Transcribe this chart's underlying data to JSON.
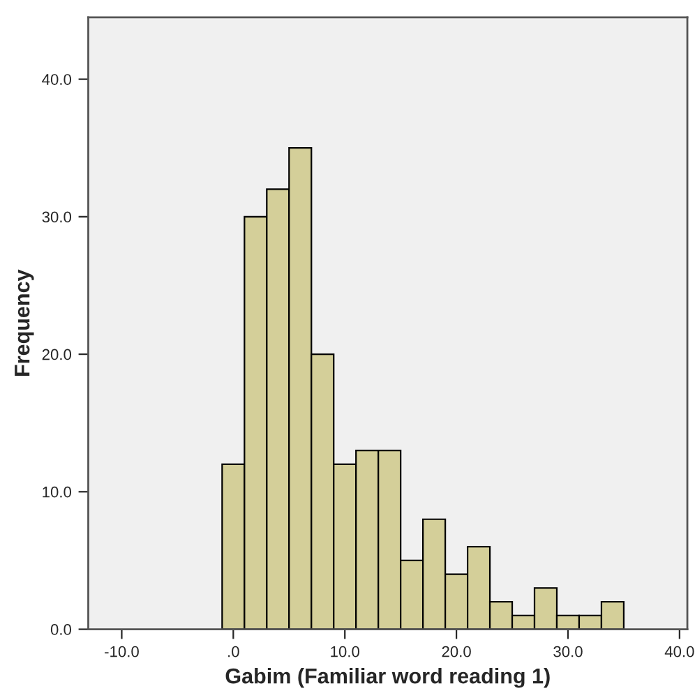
{
  "chart_data": {
    "type": "histogram",
    "xlabel": "Gabim (Familiar word reading 1)",
    "ylabel": "Frequency",
    "color": "#d4cf99",
    "bins": [
      -1,
      1,
      3,
      5,
      7,
      9,
      11,
      13,
      15,
      17,
      19,
      21,
      23,
      25,
      27,
      29,
      31,
      33,
      35
    ],
    "values": [
      12,
      30,
      32,
      35,
      20,
      12,
      13,
      13,
      5,
      8,
      4,
      6,
      2,
      1,
      3,
      1,
      1,
      2
    ],
    "xlim": [
      -13,
      40.7
    ],
    "ylim": [
      0,
      44.5
    ],
    "xticks": [
      {
        "value": -10,
        "label": "-10.0"
      },
      {
        "value": 0,
        "label": ".0"
      },
      {
        "value": 10,
        "label": "10.0"
      },
      {
        "value": 20,
        "label": "20.0"
      },
      {
        "value": 30,
        "label": "30.0"
      },
      {
        "value": 40,
        "label": "40.0"
      }
    ],
    "yticks": [
      {
        "value": 0,
        "label": "0.0"
      },
      {
        "value": 10,
        "label": "10.0"
      },
      {
        "value": 20,
        "label": "20.0"
      },
      {
        "value": 30,
        "label": "30.0"
      },
      {
        "value": 40,
        "label": "40.0"
      }
    ],
    "grid": false
  }
}
